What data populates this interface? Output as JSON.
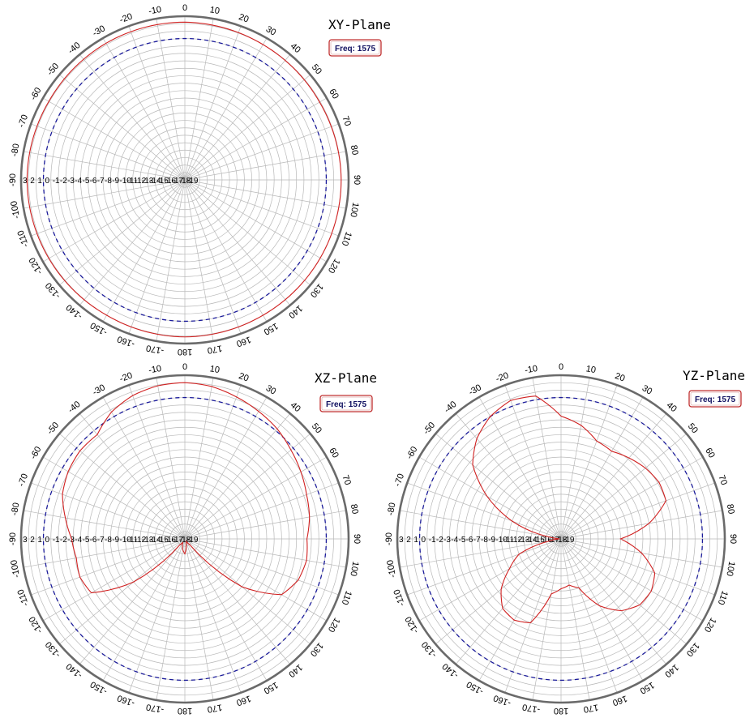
{
  "chart_data": [
    {
      "type": "polar-line",
      "title": "XY-Plane",
      "badge": "Freq: 1575",
      "angle_unit": "degrees",
      "angle_ticks": [
        "0",
        "10",
        "20",
        "30",
        "40",
        "50",
        "60",
        "70",
        "80",
        "90",
        "100",
        "110",
        "120",
        "130",
        "140",
        "150",
        "160",
        "170",
        "180",
        "-170",
        "-160",
        "-150",
        "-140",
        "-130",
        "-120",
        "-110",
        "-100",
        "-90",
        "-80",
        "-70",
        "-60",
        "-50",
        "-40",
        "-30",
        "-20",
        "-10"
      ],
      "radial_labels": [
        "3",
        "2",
        "1",
        "0",
        "-1",
        "-2",
        "-3",
        "-4",
        "-5",
        "-6",
        "-7",
        "-8",
        "-9",
        "-10",
        "-11",
        "-12",
        "-13",
        "-14",
        "-15",
        "-16",
        "-17",
        "-18",
        "-19"
      ],
      "rlim": [
        -19,
        3
      ],
      "reference_level": 0,
      "series": [
        {
          "color": "#d02020",
          "angles": [
            0,
            30,
            60,
            90,
            120,
            150,
            180,
            210,
            240,
            270,
            300,
            330
          ],
          "values": [
            2.2,
            2.0,
            1.9,
            2.0,
            2.0,
            2.0,
            2.1,
            2.0,
            2.1,
            2.2,
            2.1,
            2.2
          ]
        }
      ]
    },
    {
      "type": "polar-line",
      "title": "XZ-Plane",
      "badge": "Freq: 1575",
      "angle_unit": "degrees",
      "angle_ticks": [
        "0",
        "10",
        "20",
        "30",
        "40",
        "50",
        "60",
        "70",
        "80",
        "90",
        "100",
        "110",
        "120",
        "130",
        "140",
        "150",
        "160",
        "170",
        "180",
        "-170",
        "-160",
        "-150",
        "-140",
        "-130",
        "-120",
        "-110",
        "-100",
        "-90",
        "-80",
        "-70",
        "-60",
        "-50",
        "-40",
        "-30",
        "-20",
        "-10"
      ],
      "radial_labels": [
        "3",
        "2",
        "1",
        "0",
        "-1",
        "-2",
        "-3",
        "-4",
        "-5",
        "-6",
        "-7",
        "-8",
        "-9",
        "-10",
        "-11",
        "-12",
        "-13",
        "-14",
        "-15",
        "-16",
        "-17",
        "-18",
        "-19"
      ],
      "rlim": [
        -19,
        3
      ],
      "reference_level": 0,
      "series": [
        {
          "color": "#d02020",
          "angles": [
            0,
            10,
            20,
            30,
            40,
            50,
            60,
            70,
            80,
            90,
            100,
            110,
            120,
            130,
            140,
            150,
            160,
            170,
            180,
            190,
            200,
            210,
            220,
            230,
            240,
            250,
            260,
            270,
            280,
            290,
            300,
            310,
            320,
            330,
            340,
            350
          ],
          "values": [
            2.0,
            1.8,
            1.3,
            0.8,
            0.3,
            -0.4,
            -1.0,
            -1.6,
            -2.0,
            -2.6,
            -2.4,
            -2.8,
            -4.0,
            -9.0,
            -18.0,
            -18.6,
            -18.4,
            -18.0,
            -17.0,
            -17.5,
            -18.0,
            -18.5,
            -18.0,
            -10.0,
            -4.5,
            -4.0,
            -4.2,
            -3.8,
            -2.7,
            -1.5,
            -0.9,
            -0.6,
            -0.7,
            0.7,
            1.5,
            1.9
          ]
        }
      ]
    },
    {
      "type": "polar-line",
      "title": "YZ-Plane",
      "badge": "Freq: 1575",
      "angle_unit": "degrees",
      "angle_ticks": [
        "0",
        "10",
        "20",
        "30",
        "40",
        "50",
        "60",
        "70",
        "80",
        "90",
        "100",
        "110",
        "120",
        "130",
        "140",
        "150",
        "160",
        "170",
        "180",
        "-170",
        "-160",
        "-150",
        "-140",
        "-130",
        "-120",
        "-110",
        "-100",
        "-90",
        "-80",
        "-70",
        "-60",
        "-50",
        "-40",
        "-30",
        "-20",
        "-10"
      ],
      "radial_labels": [
        "3",
        "2",
        "1",
        "0",
        "-1",
        "-2",
        "-3",
        "-4",
        "-5",
        "-6",
        "-7",
        "-8",
        "-9",
        "-10",
        "-11",
        "-12",
        "-13",
        "-14",
        "-15",
        "-16",
        "-17",
        "-18",
        "-19"
      ],
      "rlim": [
        -19,
        3
      ],
      "reference_level": 0,
      "series": [
        {
          "color": "#d02020",
          "angles": [
            0,
            10,
            20,
            30,
            40,
            50,
            60,
            70,
            80,
            90,
            100,
            110,
            120,
            130,
            140,
            150,
            160,
            170,
            180,
            190,
            200,
            210,
            220,
            230,
            240,
            250,
            260,
            270,
            275,
            280,
            290,
            300,
            310,
            320,
            330,
            340,
            350
          ],
          "values": [
            -2.5,
            -3.5,
            -5.0,
            -5.4,
            -4.8,
            -4.2,
            -3.8,
            -4.0,
            -7.0,
            -11.0,
            -8.0,
            -5.6,
            -5.0,
            -5.2,
            -6.4,
            -8.6,
            -12.0,
            -12.7,
            -12.3,
            -11.5,
            -7.0,
            -6.4,
            -6.8,
            -8.5,
            -11.0,
            -13.0,
            -17.5,
            -18.8,
            -18.6,
            -17.0,
            -12.0,
            -7.5,
            -3.5,
            -1.4,
            0.0,
            0.8,
            0.5
          ]
        }
      ]
    }
  ]
}
